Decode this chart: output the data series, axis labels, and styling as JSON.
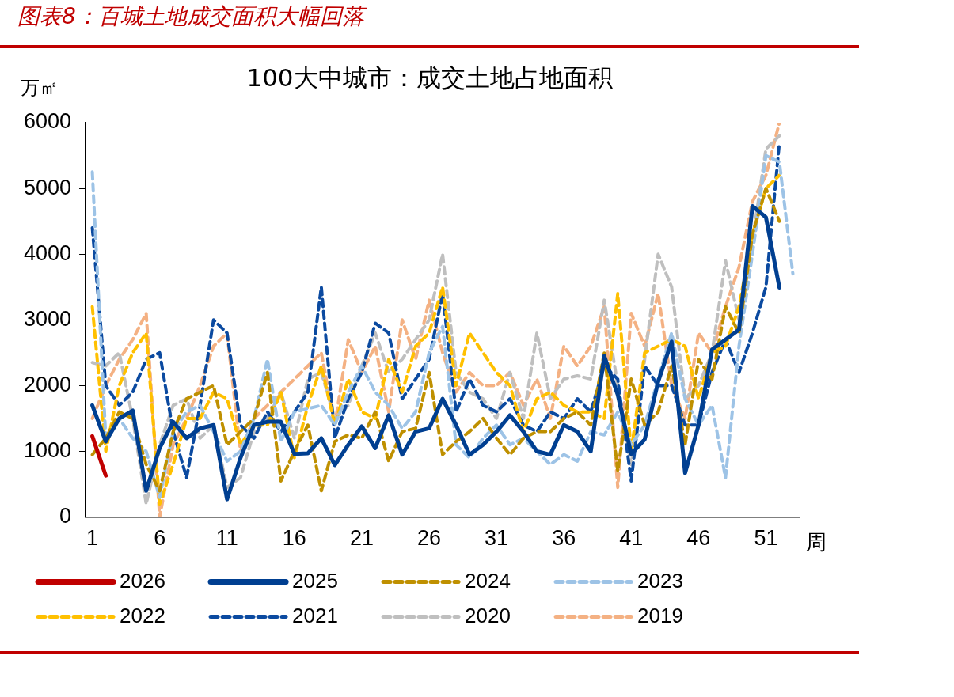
{
  "chart_data": {
    "type": "line",
    "title": "图表8：百城土地成交面积大幅回落",
    "subtitle": "100大中城市：成交土地占地面积",
    "ylabel": "万㎡",
    "xlabel": "周",
    "x": [
      1,
      2,
      3,
      4,
      5,
      6,
      7,
      8,
      9,
      10,
      11,
      12,
      13,
      14,
      15,
      16,
      17,
      18,
      19,
      20,
      21,
      22,
      23,
      24,
      25,
      26,
      27,
      28,
      29,
      30,
      31,
      32,
      33,
      34,
      35,
      36,
      37,
      38,
      39,
      40,
      41,
      42,
      43,
      44,
      45,
      46,
      47,
      48,
      49,
      50,
      51,
      52,
      53
    ],
    "xlim": [
      0.5,
      53.5
    ],
    "xticks": [
      1,
      6,
      11,
      16,
      21,
      26,
      31,
      36,
      41,
      46,
      51
    ],
    "ylim": [
      0,
      6000
    ],
    "yticks": [
      0,
      1000,
      2000,
      3000,
      4000,
      5000,
      6000
    ],
    "grid": false,
    "legend": "bottom",
    "marker": "none",
    "series": [
      {
        "name": "2026",
        "color": "#c00000",
        "line_style": "solid",
        "values": [
          1230,
          630,
          null,
          null,
          null,
          null,
          null,
          null,
          null,
          null,
          null,
          null,
          null,
          null,
          null,
          null,
          null,
          null,
          null,
          null,
          null,
          null,
          null,
          null,
          null,
          null,
          null,
          null,
          null,
          null,
          null,
          null,
          null,
          null,
          null,
          null,
          null,
          null,
          null,
          null,
          null,
          null,
          null,
          null,
          null,
          null,
          null,
          null,
          null,
          null,
          null,
          null,
          null
        ]
      },
      {
        "name": "2025",
        "color": "#003f91",
        "line_style": "solid",
        "values": [
          1700,
          1150,
          1500,
          1620,
          400,
          1050,
          1450,
          1200,
          1350,
          1400,
          270,
          900,
          1400,
          1450,
          1450,
          960,
          970,
          1200,
          790,
          1100,
          1380,
          1050,
          1550,
          950,
          1300,
          1350,
          1800,
          1400,
          950,
          1100,
          1300,
          1550,
          1300,
          1000,
          950,
          1400,
          1300,
          1000,
          2450,
          1860,
          960,
          1180,
          2060,
          2670,
          670,
          1400,
          2550,
          2700,
          2850,
          4730,
          4560,
          3490,
          null
        ]
      },
      {
        "name": "2024",
        "color": "#bf9000",
        "line_style": "dashed",
        "values": [
          950,
          1200,
          1600,
          1500,
          800,
          400,
          1300,
          1800,
          1900,
          2000,
          1100,
          1300,
          1500,
          2200,
          550,
          1000,
          1400,
          400,
          1150,
          1250,
          1200,
          1600,
          850,
          1300,
          1350,
          2200,
          950,
          1150,
          1300,
          1500,
          1200,
          950,
          1200,
          1300,
          1300,
          1500,
          1600,
          1400,
          2500,
          700,
          2100,
          1400,
          1600,
          2300,
          1100,
          2400,
          2100,
          3200,
          2800,
          4300,
          5000,
          4500,
          null
        ]
      },
      {
        "name": "2023",
        "color": "#9dc3e6",
        "line_style": "dashed",
        "values": [
          5250,
          1200,
          1500,
          1200,
          1000,
          300,
          1300,
          1600,
          1700,
          1300,
          850,
          1000,
          1500,
          2400,
          1150,
          1600,
          1650,
          1700,
          1400,
          1900,
          2300,
          1900,
          1700,
          1350,
          1600,
          2500,
          2900,
          1100,
          900,
          1200,
          1400,
          1100,
          1200,
          1000,
          800,
          950,
          850,
          1300,
          1250,
          1600,
          1100,
          1400,
          2100,
          2800,
          1800,
          1400,
          1700,
          600,
          2600,
          4000,
          5500,
          5400,
          3700
        ]
      },
      {
        "name": "2022",
        "color": "#ffc000",
        "line_style": "dashed",
        "values": [
          3200,
          1000,
          2000,
          2500,
          2800,
          200,
          800,
          1500,
          1500,
          1900,
          1800,
          1100,
          1400,
          1400,
          1900,
          900,
          1700,
          2300,
          1400,
          2100,
          1600,
          1500,
          2400,
          1900,
          2600,
          2800,
          3500,
          2000,
          2800,
          2500,
          2200,
          2000,
          1300,
          1800,
          1900,
          1700,
          1600,
          1600,
          1500,
          3400,
          1000,
          2500,
          2600,
          2700,
          2600,
          1800,
          2500,
          2600,
          3200,
          4300,
          5000,
          5200,
          null
        ]
      },
      {
        "name": "2021",
        "color": "#0b4aa0",
        "line_style": "dashed",
        "values": [
          4400,
          2000,
          1700,
          1900,
          2400,
          2500,
          1300,
          600,
          1700,
          3000,
          2800,
          1400,
          1200,
          1600,
          1300,
          1600,
          1900,
          3500,
          1200,
          1800,
          2200,
          2950,
          2800,
          1800,
          2100,
          2400,
          3400,
          1600,
          2100,
          1700,
          1600,
          1800,
          1400,
          1300,
          1600,
          1500,
          1800,
          1600,
          2300,
          2100,
          550,
          2300,
          2000,
          2000,
          1400,
          1400,
          2200,
          2700,
          2200,
          2800,
          3500,
          5700,
          null
        ]
      },
      {
        "name": "2020",
        "color": "#bfbfbf",
        "line_style": "dashed",
        "values": [
          2350,
          2300,
          2500,
          1500,
          200,
          1100,
          1700,
          1800,
          1200,
          1400,
          450,
          600,
          1300,
          1500,
          1900,
          1200,
          2100,
          2200,
          1500,
          1700,
          2300,
          2800,
          2200,
          2400,
          2700,
          3000,
          4000,
          2200,
          1900,
          1800,
          1500,
          2200,
          1500,
          2800,
          1800,
          2100,
          2150,
          2100,
          3300,
          2000,
          800,
          2400,
          4000,
          3500,
          1800,
          2000,
          2500,
          3900,
          3000,
          4200,
          5600,
          5800,
          null
        ]
      },
      {
        "name": "2019",
        "color": "#f4b183",
        "line_style": "dashed",
        "values": [
          1500,
          2000,
          2400,
          2700,
          3100,
          0,
          1100,
          1500,
          2000,
          2600,
          2800,
          1000,
          1500,
          1700,
          1900,
          2100,
          2300,
          2500,
          1400,
          2700,
          2200,
          2600,
          1600,
          3000,
          2400,
          3300,
          2500,
          1900,
          2200,
          2000,
          2000,
          2200,
          1700,
          2100,
          1500,
          2600,
          2300,
          2600,
          3200,
          450,
          3100,
          2600,
          3400,
          2000,
          1500,
          2800,
          2500,
          3200,
          3800,
          4800,
          5200,
          6000,
          null
        ]
      }
    ]
  }
}
